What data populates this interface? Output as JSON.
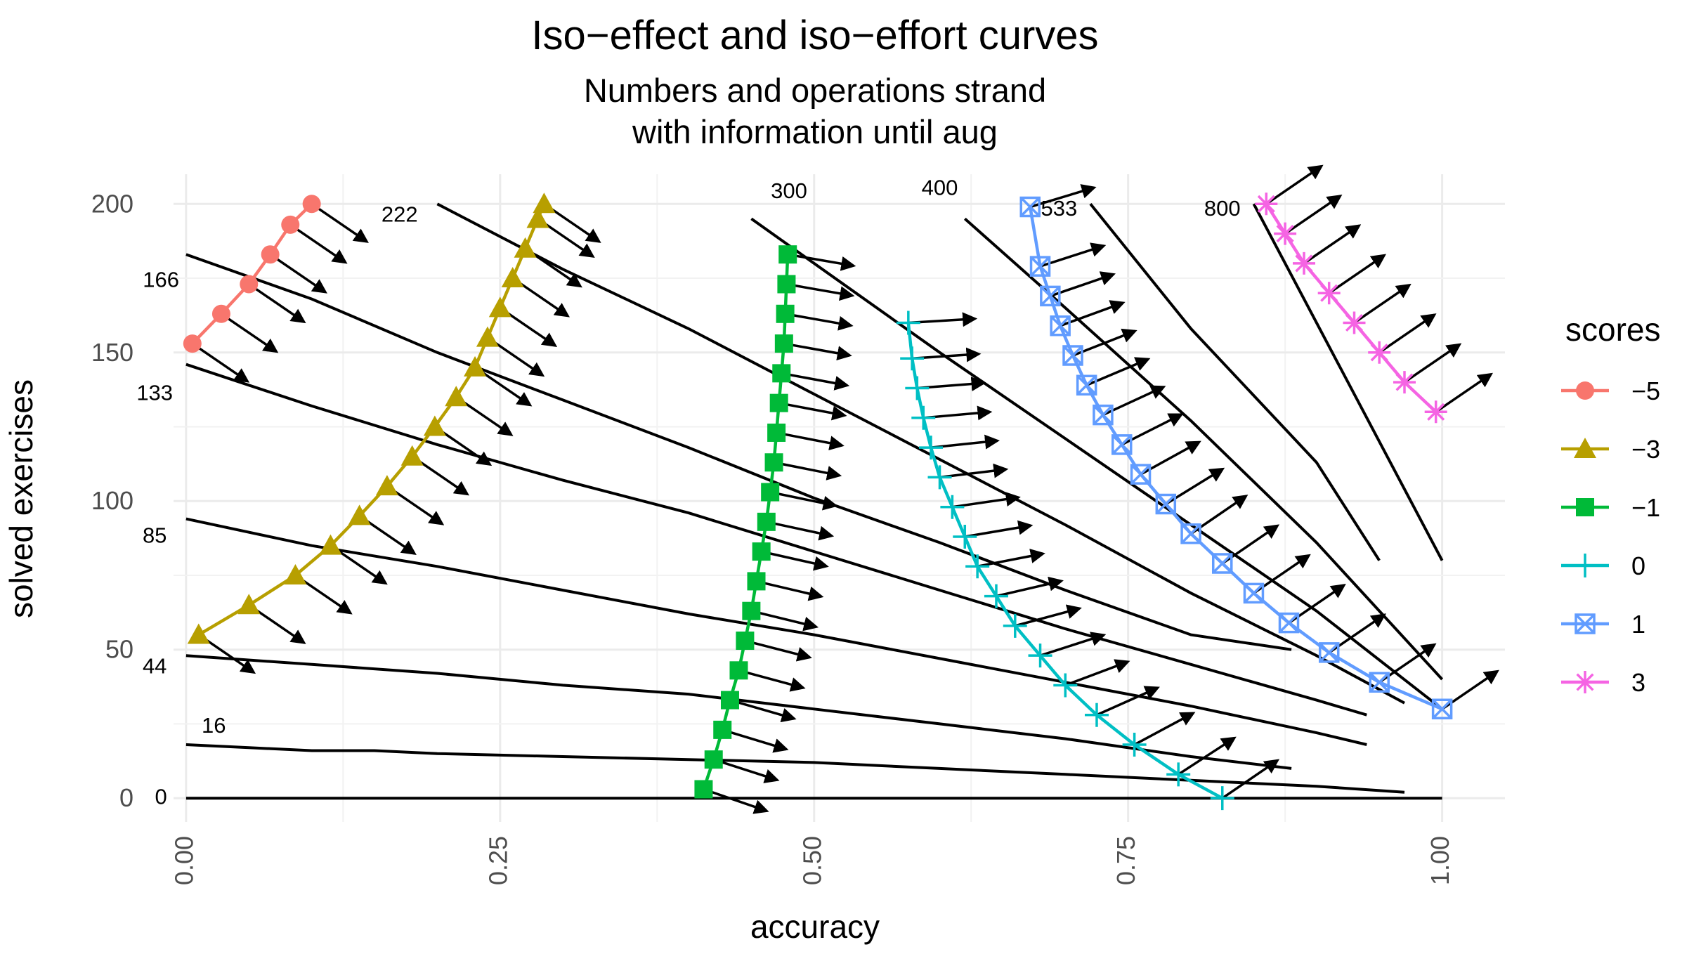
{
  "chart_data": {
    "type": "line",
    "title": "Iso−effect and iso−effort curves",
    "subtitle_lines": [
      "Numbers and operations strand",
      "with information until aug"
    ],
    "xlabel": "accuracy",
    "ylabel": "solved exercises",
    "xlim": [
      -0.01,
      1.05
    ],
    "ylim": [
      -8,
      210
    ],
    "x_ticks": [
      {
        "value": 0.0,
        "label": "0.00"
      },
      {
        "value": 0.25,
        "label": "0.25"
      },
      {
        "value": 0.5,
        "label": "0.50"
      },
      {
        "value": 0.75,
        "label": "0.75"
      },
      {
        "value": 1.0,
        "label": "1.00"
      }
    ],
    "y_ticks": [
      {
        "value": 0,
        "label": "0"
      },
      {
        "value": 50,
        "label": "50"
      },
      {
        "value": 100,
        "label": "100"
      },
      {
        "value": 150,
        "label": "150"
      },
      {
        "value": 200,
        "label": "200"
      }
    ],
    "grid": true,
    "legend": {
      "title": "scores",
      "position": "right",
      "items": [
        {
          "label": "−5",
          "color": "#F8766D",
          "shape": "circle"
        },
        {
          "label": "−3",
          "color": "#B79F00",
          "shape": "triangle"
        },
        {
          "label": "−1",
          "color": "#00BA38",
          "shape": "square"
        },
        {
          "label": "0",
          "color": "#00BFC4",
          "shape": "plus"
        },
        {
          "label": "1",
          "color": "#619CFF",
          "shape": "boxtimes"
        },
        {
          "label": "3",
          "color": "#F564E3",
          "shape": "asterisk"
        }
      ]
    },
    "iso_effort_curves": [
      {
        "label": "0",
        "label_at": [
          -0.02,
          -2
        ],
        "x": [
          0.0,
          1.0
        ],
        "y": [
          0,
          0
        ]
      },
      {
        "label": "16",
        "label_at": [
          0.022,
          22
        ],
        "x": [
          0.0,
          0.05,
          0.1,
          0.15,
          0.2,
          0.3,
          0.4,
          0.5,
          0.6,
          0.7,
          0.8,
          0.9,
          0.97
        ],
        "y": [
          18,
          17,
          16,
          16,
          15,
          14,
          13,
          12,
          10,
          8,
          6,
          4,
          2
        ]
      },
      {
        "label": "44",
        "label_at": [
          -0.025,
          42
        ],
        "x": [
          0.0,
          0.1,
          0.2,
          0.3,
          0.4,
          0.5,
          0.6,
          0.7,
          0.8,
          0.88
        ],
        "y": [
          48,
          45,
          42,
          38,
          35,
          30,
          25,
          20,
          14,
          10
        ]
      },
      {
        "label": "85",
        "label_at": [
          -0.025,
          86
        ],
        "x": [
          0.0,
          0.1,
          0.2,
          0.3,
          0.4,
          0.5,
          0.6,
          0.7,
          0.8,
          0.9,
          0.94
        ],
        "y": [
          94,
          85,
          78,
          70,
          62,
          55,
          47,
          39,
          31,
          22,
          18
        ]
      },
      {
        "label": "133",
        "label_at": [
          -0.025,
          134
        ],
        "x": [
          0.0,
          0.1,
          0.2,
          0.3,
          0.4,
          0.5,
          0.6,
          0.7,
          0.8,
          0.9,
          0.94
        ],
        "y": [
          146,
          132,
          119,
          107,
          96,
          83,
          70,
          57,
          45,
          33,
          28
        ]
      },
      {
        "label": "166",
        "label_at": [
          -0.02,
          172
        ],
        "x": [
          0.0,
          0.1,
          0.2,
          0.3,
          0.4,
          0.5,
          0.6,
          0.7,
          0.8,
          0.88
        ],
        "y": [
          183,
          168,
          150,
          134,
          118,
          101,
          86,
          70,
          55,
          50
        ]
      },
      {
        "label": "222",
        "label_at": [
          0.17,
          194
        ],
        "x": [
          0.2,
          0.3,
          0.4,
          0.5,
          0.6,
          0.7,
          0.8,
          0.9,
          0.97
        ],
        "y": [
          200,
          178,
          158,
          136,
          114,
          92,
          69,
          48,
          32
        ]
      },
      {
        "label": "300",
        "label_at": [
          0.48,
          202
        ],
        "x": [
          0.45,
          0.5,
          0.6,
          0.7,
          0.8,
          0.9,
          1.0
        ],
        "y": [
          195,
          180,
          150,
          121,
          92,
          63,
          30
        ]
      },
      {
        "label": "400",
        "label_at": [
          0.6,
          203
        ],
        "x": [
          0.62,
          0.7,
          0.8,
          0.9,
          1.0
        ],
        "y": [
          195,
          165,
          127,
          86,
          40
        ]
      },
      {
        "label": "533",
        "label_at": [
          0.695,
          196
        ],
        "x": [
          0.72,
          0.8,
          0.9,
          0.95
        ],
        "y": [
          200,
          158,
          113,
          80
        ]
      },
      {
        "label": "800",
        "label_at": [
          0.825,
          196
        ],
        "x": [
          0.85,
          1.0
        ],
        "y": [
          200,
          80
        ]
      }
    ],
    "series": [
      {
        "name": "−5",
        "x": [
          0.005,
          0.028,
          0.05,
          0.067,
          0.083,
          0.1
        ],
        "y": [
          153,
          163,
          173,
          183,
          193,
          200
        ],
        "arrows": true
      },
      {
        "name": "−3",
        "x": [
          0.01,
          0.05,
          0.087,
          0.115,
          0.138,
          0.16,
          0.18,
          0.198,
          0.215,
          0.23,
          0.24,
          0.25,
          0.26,
          0.27,
          0.28,
          0.285
        ],
        "y": [
          55,
          65,
          75,
          85,
          95,
          105,
          115,
          125,
          135,
          145,
          155,
          165,
          175,
          185,
          195,
          200
        ],
        "arrows": true
      },
      {
        "name": "−1",
        "x": [
          0.412,
          0.42,
          0.427,
          0.433,
          0.44,
          0.445,
          0.45,
          0.454,
          0.458,
          0.462,
          0.465,
          0.468,
          0.47,
          0.472,
          0.474,
          0.476,
          0.477,
          0.478,
          0.479
        ],
        "y": [
          3,
          13,
          23,
          33,
          43,
          53,
          63,
          73,
          83,
          93,
          103,
          113,
          123,
          133,
          143,
          153,
          163,
          173,
          183
        ],
        "arrows": true
      },
      {
        "name": "0",
        "x": [
          0.825,
          0.79,
          0.755,
          0.725,
          0.7,
          0.68,
          0.66,
          0.645,
          0.63,
          0.62,
          0.61,
          0.6,
          0.593,
          0.587,
          0.582,
          0.578,
          0.575
        ],
        "y": [
          0,
          8,
          18,
          28,
          38,
          48,
          58,
          68,
          78,
          88,
          98,
          108,
          118,
          128,
          138,
          148,
          160
        ],
        "arrows": true
      },
      {
        "name": "1",
        "x": [
          1.0,
          0.95,
          0.91,
          0.878,
          0.85,
          0.825,
          0.8,
          0.78,
          0.76,
          0.745,
          0.73,
          0.717,
          0.706,
          0.696,
          0.688,
          0.68,
          0.672
        ],
        "y": [
          30,
          39,
          49,
          59,
          69,
          79,
          89,
          99,
          109,
          119,
          129,
          139,
          149,
          159,
          169,
          179,
          199
        ],
        "arrows": true
      },
      {
        "name": "3",
        "x": [
          0.86,
          0.875,
          0.89,
          0.91,
          0.93,
          0.95,
          0.97,
          0.995
        ],
        "y": [
          200,
          190,
          180,
          170,
          160,
          150,
          140,
          130
        ],
        "arrows": true
      }
    ]
  }
}
